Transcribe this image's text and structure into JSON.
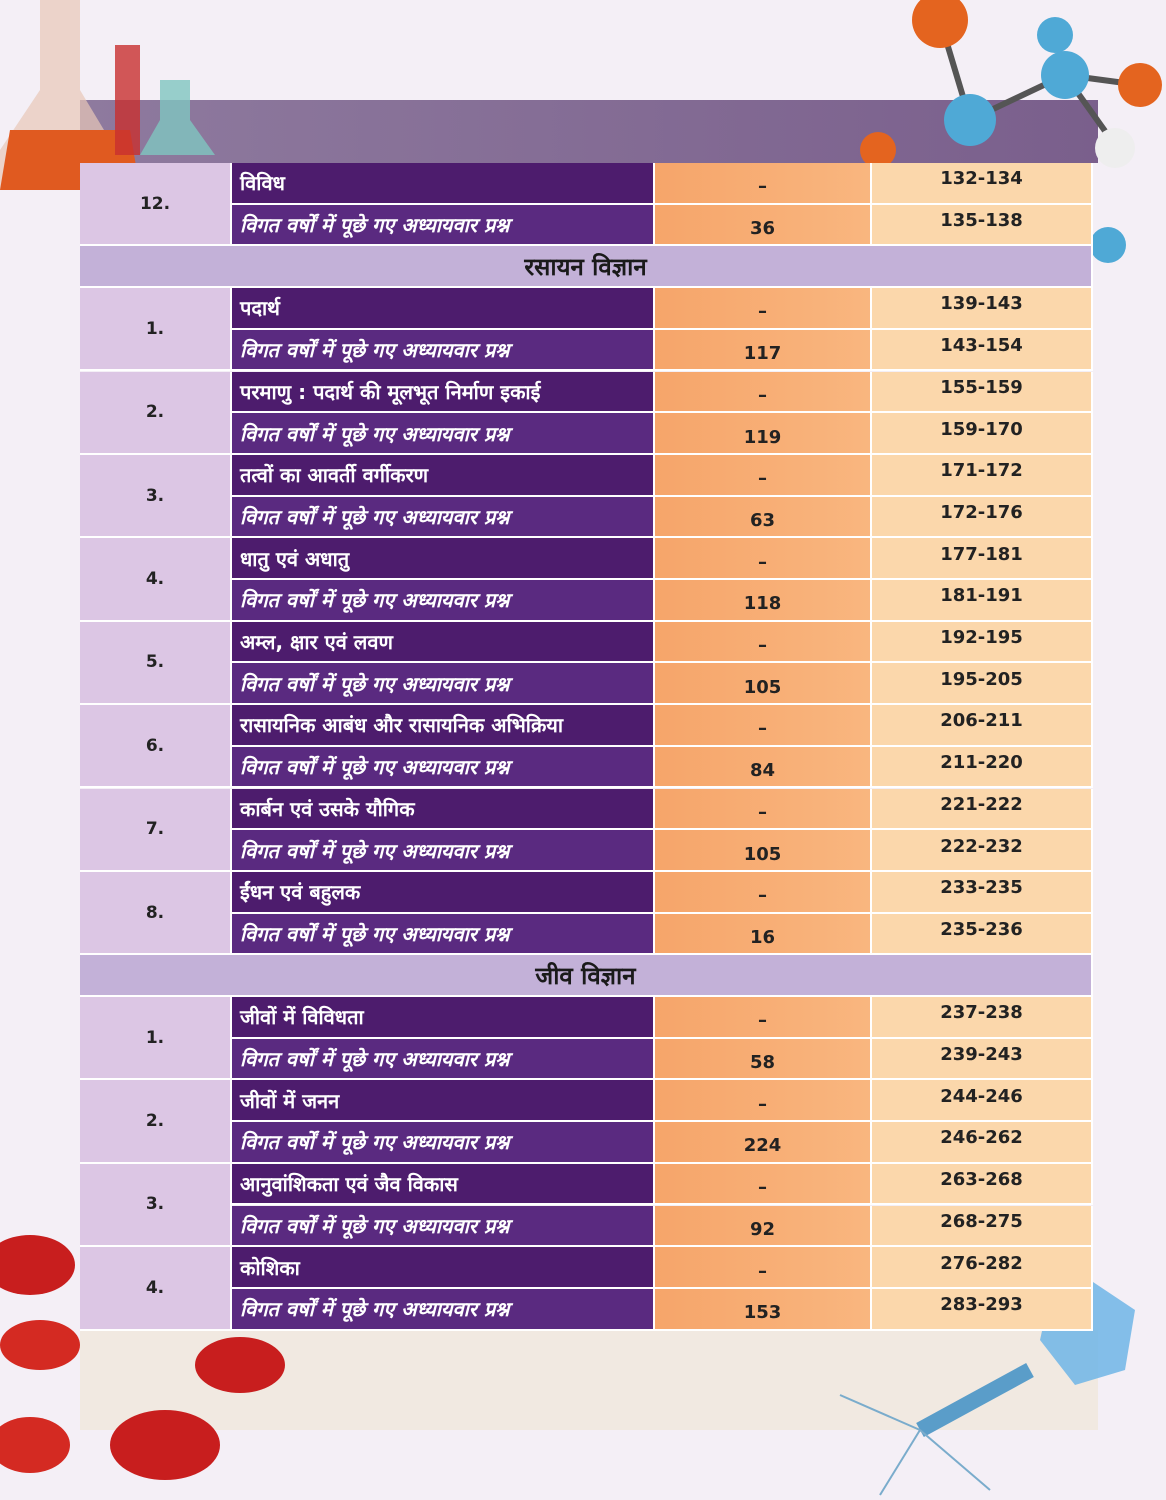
{
  "blocks": [
    {
      "number": "12.",
      "rows": [
        [
          "विविध",
          "–",
          "132-134"
        ],
        [
          "विगत वर्षों में पूछे गए अध्यायवार प्रश्न",
          "36",
          "135-138"
        ]
      ]
    },
    {
      "heading": "रसायन विज्ञान"
    },
    {
      "number": "1.",
      "rows": [
        [
          "पदार्थ",
          "–",
          "139-143"
        ],
        [
          "विगत वर्षों में पूछे गए अध्यायवार प्रश्न",
          "117",
          "143-154"
        ]
      ]
    },
    {
      "number": "2.",
      "rows": [
        [
          "परमाणु : पदार्थ की मूलभूत निर्माण इकाई",
          "–",
          "155-159"
        ],
        [
          "विगत वर्षों में पूछे गए अध्यायवार प्रश्न",
          "119",
          "159-170"
        ]
      ]
    },
    {
      "number": "3.",
      "rows": [
        [
          "तत्वों का आवर्ती वर्गीकरण",
          "–",
          "171-172"
        ],
        [
          "विगत वर्षों में पूछे गए अध्यायवार प्रश्न",
          "63",
          "172-176"
        ]
      ]
    },
    {
      "number": "4.",
      "rows": [
        [
          "धातु एवं अधातु",
          "–",
          "177-181"
        ],
        [
          "विगत वर्षों में पूछे गए अध्यायवार प्रश्न",
          "118",
          "181-191"
        ]
      ]
    },
    {
      "number": "5.",
      "rows": [
        [
          "अम्ल, क्षार एवं लवण",
          "–",
          "192-195"
        ],
        [
          "विगत वर्षों में पूछे गए अध्यायवार प्रश्न",
          "105",
          "195-205"
        ]
      ]
    },
    {
      "number": "6.",
      "rows": [
        [
          "रासायनिक आबंध और रासायनिक अभिक्रिया",
          "–",
          "206-211"
        ],
        [
          "विगत वर्षों में पूछे गए अध्यायवार प्रश्न",
          "84",
          "211-220"
        ]
      ]
    },
    {
      "number": "7.",
      "rows": [
        [
          "कार्बन एवं उसके यौगिक",
          "–",
          "221-222"
        ],
        [
          "विगत वर्षों में पूछे गए अध्यायवार प्रश्न",
          "105",
          "222-232"
        ]
      ]
    },
    {
      "number": "8.",
      "rows": [
        [
          "ईंधन एवं बहुलक",
          "–",
          "233-235"
        ],
        [
          "विगत वर्षों में पूछे गए अध्यायवार प्रश्न",
          "16",
          "235-236"
        ]
      ]
    },
    {
      "heading": "जीव विज्ञान"
    },
    {
      "number": "1.",
      "rows": [
        [
          "जीवों में विविधता",
          "–",
          "237-238"
        ],
        [
          "विगत वर्षों में पूछे गए अध्यायवार प्रश्न",
          "58",
          "239-243"
        ]
      ]
    },
    {
      "number": "2.",
      "rows": [
        [
          "जीवों में जनन",
          "–",
          "244-246"
        ],
        [
          "विगत वर्षों में पूछे गए अध्यायवार प्रश्न",
          "224",
          "246-262"
        ]
      ]
    },
    {
      "number": "3.",
      "rows": [
        [
          "आनुवांशिकता एवं जैव विकास",
          "–",
          "263-268"
        ],
        [
          "विगत वर्षों में पूछे गए अध्यायवार प्रश्न",
          "92",
          "268-275"
        ]
      ]
    },
    {
      "number": "4.",
      "rows": [
        [
          "कोशिका",
          "–",
          "276-282"
        ],
        [
          "विगत वर्षों में पूछे गए अध्यायवार प्रश्न",
          "153",
          "283-293"
        ]
      ]
    }
  ]
}
